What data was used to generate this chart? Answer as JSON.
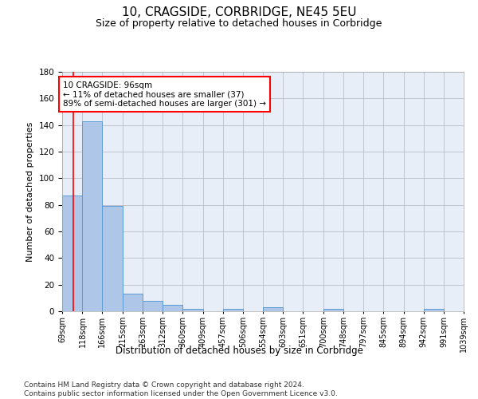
{
  "title": "10, CRAGSIDE, CORBRIDGE, NE45 5EU",
  "subtitle": "Size of property relative to detached houses in Corbridge",
  "xlabel": "Distribution of detached houses by size in Corbridge",
  "ylabel": "Number of detached properties",
  "bar_color": "#aec6e8",
  "bar_edge_color": "#5b9bd5",
  "background_color": "#e8eef8",
  "grid_color": "#bbbbcc",
  "annotation_text": "10 CRAGSIDE: 96sqm\n← 11% of detached houses are smaller (37)\n89% of semi-detached houses are larger (301) →",
  "annotation_box_color": "white",
  "annotation_box_edge": "red",
  "vline_x": 96,
  "vline_color": "red",
  "bins": [
    69,
    118,
    166,
    215,
    263,
    312,
    360,
    409,
    457,
    506,
    554,
    603,
    651,
    700,
    748,
    797,
    845,
    894,
    942,
    991,
    1039
  ],
  "bar_heights": [
    87,
    143,
    79,
    13,
    8,
    5,
    2,
    0,
    2,
    0,
    3,
    0,
    0,
    2,
    0,
    0,
    0,
    0,
    2,
    0
  ],
  "ylim": [
    0,
    180
  ],
  "yticks": [
    0,
    20,
    40,
    60,
    80,
    100,
    120,
    140,
    160,
    180
  ],
  "footnote": "Contains HM Land Registry data © Crown copyright and database right 2024.\nContains public sector information licensed under the Open Government Licence v3.0.",
  "footnote_fontsize": 6.5,
  "title_fontsize": 11,
  "subtitle_fontsize": 9,
  "xlabel_fontsize": 8.5,
  "ylabel_fontsize": 8
}
